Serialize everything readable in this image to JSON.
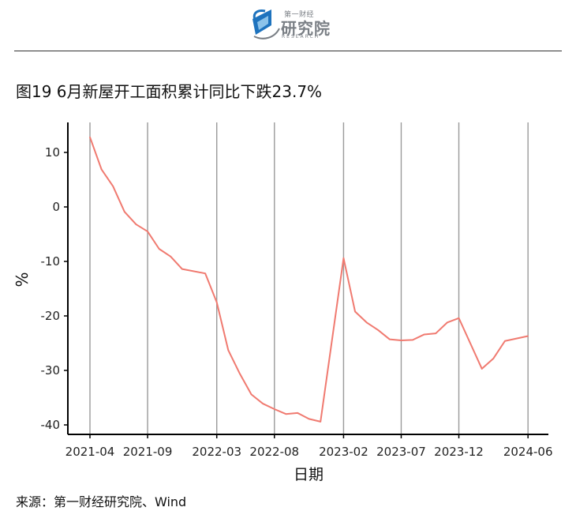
{
  "header": {
    "logo_small": "第一财经",
    "logo_main": "研究院",
    "logo_sub": "RESEARCH"
  },
  "title": "图19 6月新屋开工面积累计同比下跌23.7%",
  "source": "来源：第一财经研究院、Wind",
  "colors": {
    "line": "#f07a70",
    "grid": "#9a9a9a",
    "axis": "#000000",
    "logo_blue": "#1e73be",
    "logo_gray": "#7a7f85"
  },
  "chart_data": {
    "type": "line",
    "xlabel": "日期",
    "ylabel": "%",
    "ylim": [
      -40,
      12
    ],
    "yticks": [
      10,
      0,
      -10,
      -20,
      -30,
      -40
    ],
    "ytick_labels": [
      "10",
      "0",
      "-10",
      "-20",
      "-30",
      "-40"
    ],
    "xticks": [
      "2021-04",
      "2021-09",
      "2022-03",
      "2022-08",
      "2023-02",
      "2023-07",
      "2023-12",
      "2024-06"
    ],
    "grid": "vertical",
    "series": [
      {
        "x": [
          "2021-04",
          "2021-05",
          "2021-06",
          "2021-07",
          "2021-08",
          "2021-09",
          "2021-10",
          "2021-11",
          "2021-12",
          "2022-02",
          "2022-03",
          "2022-04",
          "2022-05",
          "2022-06",
          "2022-07",
          "2022-08",
          "2022-09",
          "2022-10",
          "2022-11",
          "2022-12",
          "2023-02",
          "2023-03",
          "2023-04",
          "2023-05",
          "2023-06",
          "2023-07",
          "2023-08",
          "2023-09",
          "2023-10",
          "2023-11",
          "2023-12",
          "2024-02",
          "2024-03",
          "2024-04",
          "2024-06"
        ],
        "values": [
          12.8,
          6.9,
          3.8,
          -0.9,
          -3.2,
          -4.5,
          -7.7,
          -9.1,
          -11.4,
          -12.2,
          -17.5,
          -26.3,
          -30.6,
          -34.4,
          -36.1,
          -37.1,
          -38.0,
          -37.8,
          -38.9,
          -39.4,
          -9.4,
          -19.2,
          -21.2,
          -22.6,
          -24.3,
          -24.5,
          -24.4,
          -23.4,
          -23.2,
          -21.2,
          -20.4,
          -29.7,
          -27.8,
          -24.6,
          -23.7
        ]
      }
    ]
  }
}
